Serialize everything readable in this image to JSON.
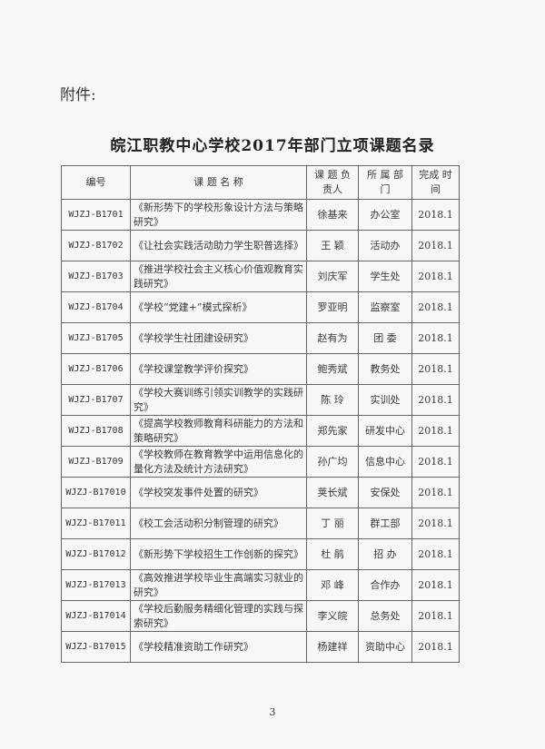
{
  "attachment_label": "附件:",
  "title": "皖江职教中心学校2017年部门立项课题名录",
  "headers": [
    "编号",
    "课 题 名 称",
    "课 题 负责人",
    "所 属 部 门",
    "完成 时间"
  ],
  "rows": [
    {
      "code": "WJZJ-B1701",
      "topic": "《新形势下的学校形象设计方法与策略研究》",
      "leader": "徐基来",
      "dept": "办公室",
      "time": "2018.1"
    },
    {
      "code": "WJZJ-B1702",
      "topic": "《让社会实践活动助力学生职普选择》",
      "leader": "王 颖",
      "dept": "活动办",
      "time": "2018.1"
    },
    {
      "code": "WJZJ-B1703",
      "topic": "《推进学校社会主义核心价值观教育实践研究》",
      "leader": "刘庆军",
      "dept": "学生处",
      "time": "2018.1"
    },
    {
      "code": "WJZJ-B1704",
      "topic": "《学校“党建+”模式探析》",
      "leader": "罗亚明",
      "dept": "监察室",
      "time": "2018.1"
    },
    {
      "code": "WJZJ-B1705",
      "topic": "《学校学生社团建设研究》",
      "leader": "赵有为",
      "dept": "团 委",
      "time": "2018.1"
    },
    {
      "code": "WJZJ-B1706",
      "topic": "《学校课堂教学评价探究》",
      "leader": "鲍秀斌",
      "dept": "教务处",
      "time": "2018.1"
    },
    {
      "code": "WJZJ-B1707",
      "topic": "《学校大赛训练引领实训教学的实践研究》",
      "leader": "陈 玲",
      "dept": "实训处",
      "time": "2018.1"
    },
    {
      "code": "WJZJ-B1708",
      "topic": "《提高学校教师教育科研能力的方法和策略研究》",
      "leader": "郑先家",
      "dept": "研发中心",
      "time": "2018.1"
    },
    {
      "code": "WJZJ-B1709",
      "topic": "《学校教师在教育教学中运用信息化的量化方法及统计方法研究》",
      "leader": "孙广均",
      "dept": "信息中心",
      "time": "2018.1"
    },
    {
      "code": "WJZJ-B17010",
      "topic": "《学校突发事件处置的研究》",
      "leader": "荚长斌",
      "dept": "安保处",
      "time": "2018.1"
    },
    {
      "code": "WJZJ-B17011",
      "topic": "《校工会活动积分制管理的研究》",
      "leader": "丁 丽",
      "dept": "群工部",
      "time": "2018.1"
    },
    {
      "code": "WJZJ-B17012",
      "topic": "《新形势下学校招生工作创新的探究》",
      "leader": "杜 鹃",
      "dept": "招 办",
      "time": "2018.1"
    },
    {
      "code": "WJZJ-B17013",
      "topic": "《高效推进学校毕业生高端实习就业的研究》",
      "leader": "邓 峰",
      "dept": "合作办",
      "time": "2018.1"
    },
    {
      "code": "WJZJ-B17014",
      "topic": "《学校后勤服务精细化管理的实践与探索研究》",
      "leader": "李义皖",
      "dept": "总务处",
      "time": "2018.1"
    },
    {
      "code": "WJZJ-B17015",
      "topic": "《学校精准资助工作研究》",
      "leader": "杨建祥",
      "dept": "资助中心",
      "time": "2018.1"
    }
  ],
  "page_number": "3"
}
